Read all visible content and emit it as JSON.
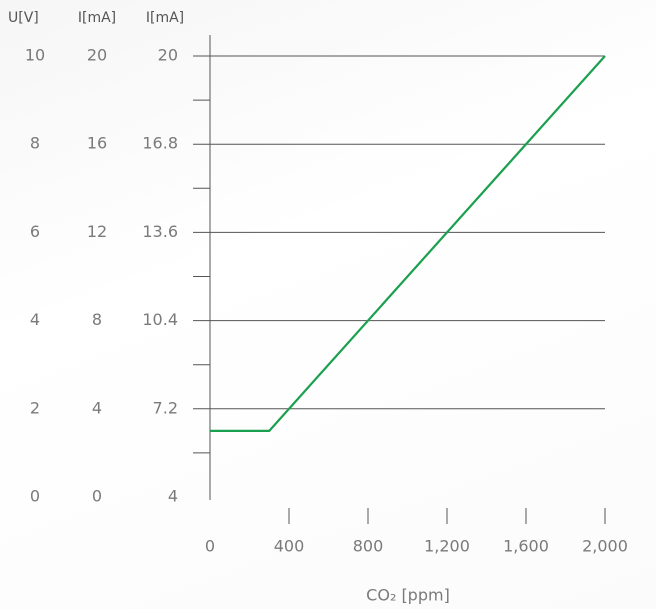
{
  "chart_data": {
    "type": "line",
    "xlabel": "CO₂ [ppm]",
    "x": [
      0,
      300,
      2000
    ],
    "series": [
      {
        "color": "#1aa04e",
        "values": [
          1.5,
          1.5,
          10
        ]
      }
    ],
    "xlim": [
      0,
      2000
    ],
    "xticks": [
      0,
      400,
      800,
      {
        "value": 1200,
        "label": "1,200"
      },
      {
        "value": 1600,
        "label": "1,600"
      },
      {
        "value": 2000,
        "label": "2,000"
      }
    ],
    "y_axes": [
      {
        "label": "U[V]",
        "lim": [
          0,
          10
        ],
        "ticks": [
          0,
          2,
          4,
          6,
          8,
          10
        ]
      },
      {
        "label": "I[mA]",
        "lim": [
          0,
          20
        ],
        "ticks": [
          0,
          4,
          8,
          12,
          16,
          20
        ]
      },
      {
        "label": "I[mA]",
        "lim": [
          4,
          20
        ],
        "ticks": [
          4,
          7.2,
          10.4,
          13.6,
          16.8,
          20
        ]
      }
    ],
    "minor_yticks": [
      1,
      3,
      5,
      7,
      9
    ],
    "grid": true
  }
}
